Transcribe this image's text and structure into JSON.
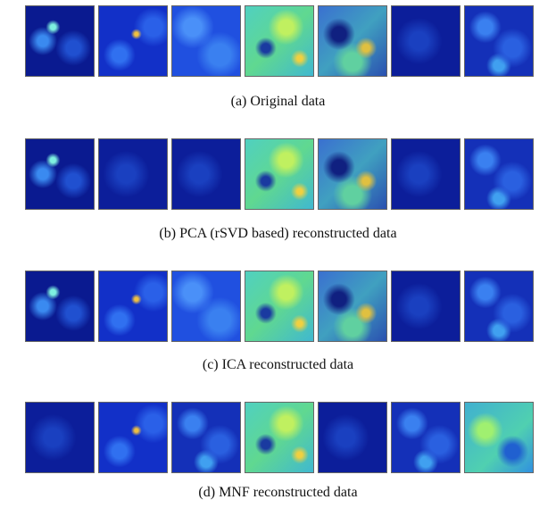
{
  "panels": [
    {
      "caption": "(a)  Original data"
    },
    {
      "caption": "(b)  PCA (rSVD based) reconstructed data"
    },
    {
      "caption": "(c)  ICA reconstructed data"
    },
    {
      "caption": "(d)  MNF reconstructed data"
    }
  ]
}
